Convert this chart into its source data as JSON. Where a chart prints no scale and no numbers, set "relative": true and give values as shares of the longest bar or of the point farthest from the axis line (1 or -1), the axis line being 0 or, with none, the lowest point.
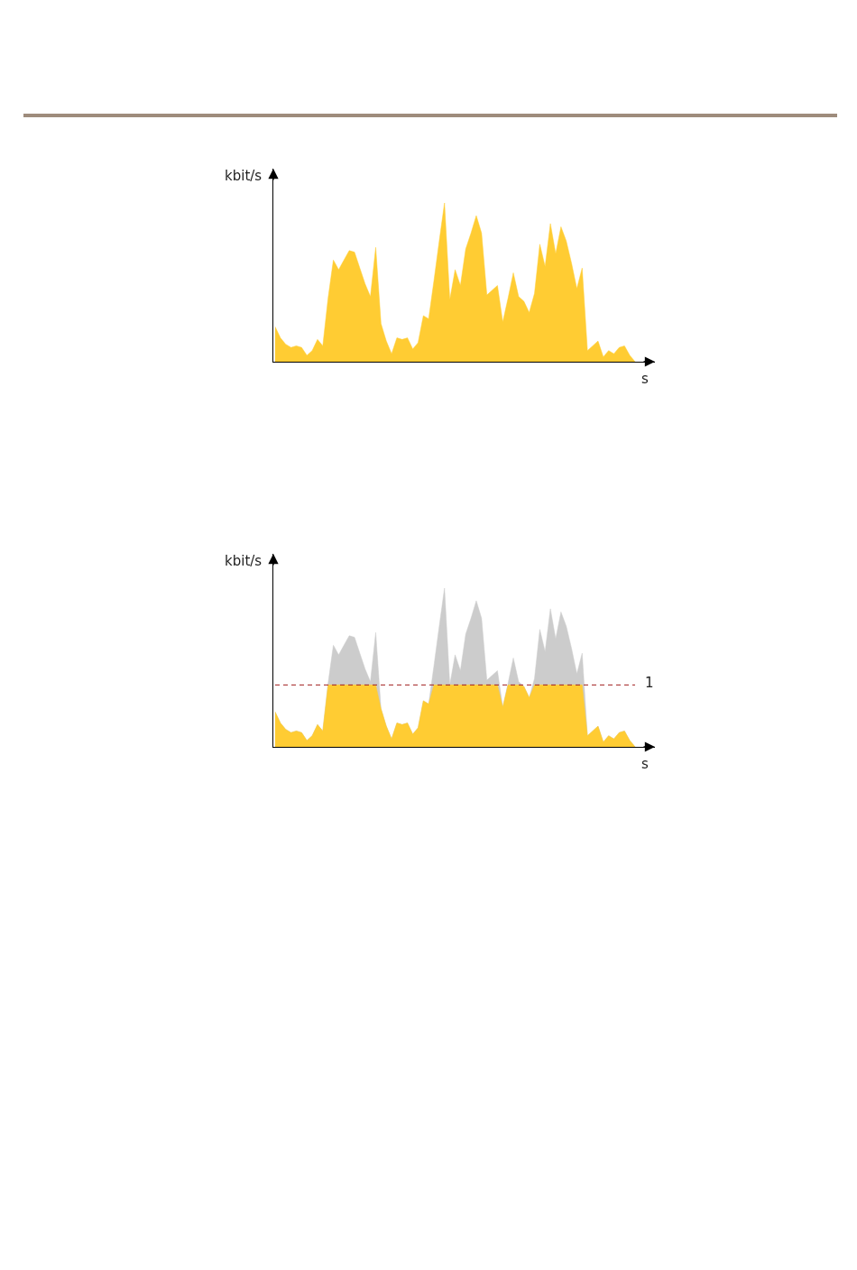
{
  "chart_data": [
    {
      "type": "area",
      "relative": true,
      "xlabel": "s",
      "ylabel": "kbit/s",
      "categories": [
        null,
        null,
        null,
        null,
        null,
        null,
        null,
        null,
        null,
        null,
        null,
        null,
        null,
        null,
        null,
        null,
        null,
        null,
        null,
        null,
        null,
        null,
        null,
        null,
        null,
        null,
        null,
        null,
        null,
        null,
        null,
        null,
        null,
        null,
        null,
        null,
        null,
        null,
        null,
        null,
        null,
        null,
        null,
        null,
        null,
        null,
        null,
        null,
        null,
        null,
        null,
        null,
        null,
        null,
        null,
        null,
        null,
        null,
        null,
        null,
        null,
        null,
        null,
        null,
        null,
        null,
        null,
        null,
        null
      ],
      "series": [
        {
          "color": "#ffcc33",
          "values": [
            0.22,
            0.15,
            0.11,
            0.09,
            0.1,
            0.09,
            0.04,
            0.07,
            0.14,
            0.1,
            0.4,
            0.64,
            0.58,
            0.64,
            0.7,
            0.69,
            0.59,
            0.49,
            0.41,
            0.72,
            0.24,
            0.13,
            0.05,
            0.15,
            0.14,
            0.15,
            0.08,
            0.12,
            0.29,
            0.27,
            0.51,
            0.76,
            1,
            0.39,
            0.58,
            0.48,
            0.71,
            0.81,
            0.92,
            0.81,
            0.42,
            0.45,
            0.48,
            0.25,
            0.4,
            0.56,
            0.41,
            0.38,
            0.31,
            0.43,
            0.74,
            0.6,
            0.87,
            0.68,
            0.85,
            0.76,
            0.62,
            0.46,
            0.59,
            0.07,
            0.1,
            0.13,
            0.03,
            0.07,
            0.05,
            0.09,
            0.1,
            0.04,
            0
          ]
        }
      ]
    },
    {
      "type": "area",
      "relative": true,
      "xlabel": "s",
      "ylabel": "kbit/s",
      "categories": [
        null,
        null,
        null,
        null,
        null,
        null,
        null,
        null,
        null,
        null,
        null,
        null,
        null,
        null,
        null,
        null,
        null,
        null,
        null,
        null,
        null,
        null,
        null,
        null,
        null,
        null,
        null,
        null,
        null,
        null,
        null,
        null,
        null,
        null,
        null,
        null,
        null,
        null,
        null,
        null,
        null,
        null,
        null,
        null,
        null,
        null,
        null,
        null,
        null,
        null,
        null,
        null,
        null,
        null,
        null,
        null,
        null,
        null,
        null,
        null,
        null,
        null,
        null,
        null,
        null,
        null,
        null,
        null,
        null
      ],
      "series": [
        {
          "color": "#cccccc",
          "values": [
            0.22,
            0.15,
            0.11,
            0.09,
            0.1,
            0.09,
            0.04,
            0.07,
            0.14,
            0.1,
            0.4,
            0.64,
            0.58,
            0.64,
            0.7,
            0.69,
            0.59,
            0.49,
            0.41,
            0.72,
            0.24,
            0.13,
            0.05,
            0.15,
            0.14,
            0.15,
            0.08,
            0.12,
            0.29,
            0.27,
            0.51,
            0.76,
            1,
            0.39,
            0.58,
            0.48,
            0.71,
            0.81,
            0.92,
            0.81,
            0.42,
            0.45,
            0.48,
            0.25,
            0.4,
            0.56,
            0.41,
            0.38,
            0.31,
            0.43,
            0.74,
            0.6,
            0.87,
            0.68,
            0.85,
            0.76,
            0.62,
            0.46,
            0.59,
            0.07,
            0.1,
            0.13,
            0.03,
            0.07,
            0.05,
            0.09,
            0.1,
            0.04,
            0
          ]
        },
        {
          "color": "#ffcc33",
          "values": [
            0.22,
            0.15,
            0.11,
            0.09,
            0.1,
            0.09,
            0.04,
            0.07,
            0.14,
            0.1,
            0.39,
            0.39,
            0.39,
            0.39,
            0.39,
            0.39,
            0.39,
            0.39,
            0.39,
            0.39,
            0.24,
            0.13,
            0.05,
            0.15,
            0.14,
            0.15,
            0.08,
            0.12,
            0.29,
            0.27,
            0.39,
            0.39,
            0.39,
            0.39,
            0.39,
            0.39,
            0.39,
            0.39,
            0.39,
            0.39,
            0.39,
            0.39,
            0.39,
            0.25,
            0.39,
            0.39,
            0.39,
            0.38,
            0.31,
            0.39,
            0.39,
            0.39,
            0.39,
            0.39,
            0.39,
            0.39,
            0.39,
            0.39,
            0.39,
            0.07,
            0.1,
            0.13,
            0.03,
            0.07,
            0.05,
            0.09,
            0.1,
            0.04,
            0
          ]
        }
      ],
      "ref_lines": [
        {
          "axis": "y",
          "value": 0.39,
          "color": "#a01e1e",
          "line_style": "dashed"
        }
      ],
      "annotations": [
        "1"
      ]
    }
  ]
}
